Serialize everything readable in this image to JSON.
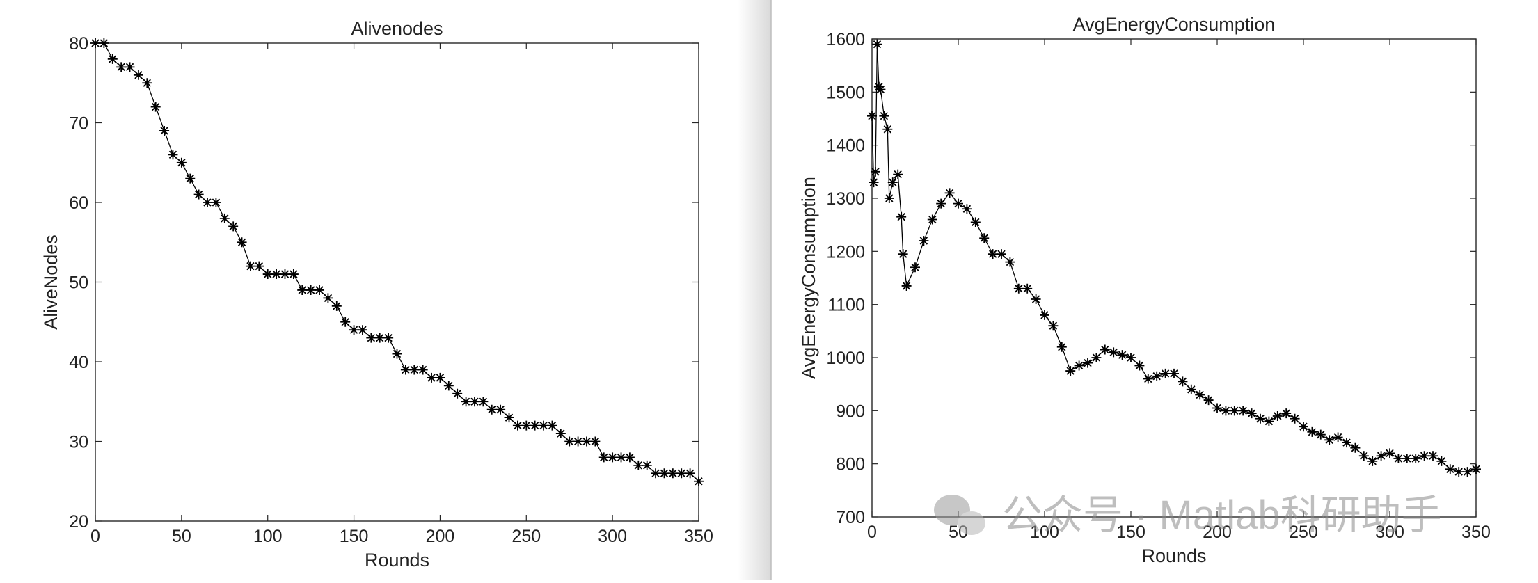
{
  "chart_data": [
    {
      "type": "line",
      "title": "Alivenodes",
      "xlabel": "Rounds",
      "ylabel": "AliveNodes",
      "color": "#000000",
      "marker": "star",
      "x": [
        0,
        5,
        10,
        15,
        20,
        25,
        30,
        35,
        40,
        45,
        50,
        55,
        60,
        65,
        70,
        75,
        80,
        85,
        90,
        95,
        100,
        105,
        110,
        115,
        120,
        125,
        130,
        135,
        140,
        145,
        150,
        155,
        160,
        165,
        170,
        175,
        180,
        185,
        190,
        195,
        200,
        205,
        210,
        215,
        220,
        225,
        230,
        235,
        240,
        245,
        250,
        255,
        260,
        265,
        270,
        275,
        280,
        285,
        290,
        295,
        300,
        305,
        310,
        315,
        320,
        325,
        330,
        335,
        340,
        345,
        350
      ],
      "values": [
        80,
        80,
        78,
        77,
        77,
        76,
        75,
        72,
        69,
        66,
        65,
        63,
        61,
        60,
        60,
        58,
        57,
        55,
        52,
        52,
        51,
        51,
        51,
        51,
        49,
        49,
        49,
        48,
        47,
        45,
        44,
        44,
        43,
        43,
        43,
        41,
        39,
        39,
        39,
        38,
        38,
        37,
        36,
        35,
        35,
        35,
        34,
        34,
        33,
        32,
        32,
        32,
        32,
        32,
        31,
        30,
        30,
        30,
        30,
        28,
        28,
        28,
        28,
        27,
        27,
        26,
        26,
        26,
        26,
        26,
        25
      ],
      "xlim": [
        0,
        350
      ],
      "ylim": [
        20,
        80
      ],
      "xticks": [
        0,
        50,
        100,
        150,
        200,
        250,
        300,
        350
      ],
      "yticks": [
        20,
        30,
        40,
        50,
        60,
        70,
        80
      ]
    },
    {
      "type": "line",
      "title": "AvgEnergyConsumption",
      "xlabel": "Rounds",
      "ylabel": "AvgEnergyConsumption",
      "color": "#000000",
      "marker": "star",
      "x": [
        0,
        1,
        2,
        3,
        4,
        5,
        7,
        9,
        10,
        12,
        15,
        17,
        18,
        20,
        25,
        30,
        35,
        40,
        45,
        50,
        55,
        60,
        65,
        70,
        75,
        80,
        85,
        90,
        95,
        100,
        105,
        110,
        115,
        120,
        125,
        130,
        135,
        140,
        145,
        150,
        155,
        160,
        165,
        170,
        175,
        180,
        185,
        190,
        195,
        200,
        205,
        210,
        215,
        220,
        225,
        230,
        235,
        240,
        245,
        250,
        255,
        260,
        265,
        270,
        275,
        280,
        285,
        290,
        295,
        300,
        305,
        310,
        315,
        320,
        325,
        330,
        335,
        340,
        345,
        350
      ],
      "values": [
        1455,
        1330,
        1350,
        1590,
        1510,
        1505,
        1455,
        1430,
        1300,
        1330,
        1345,
        1265,
        1195,
        1135,
        1170,
        1220,
        1260,
        1290,
        1310,
        1290,
        1280,
        1255,
        1225,
        1195,
        1195,
        1180,
        1130,
        1130,
        1110,
        1080,
        1060,
        1020,
        975,
        985,
        990,
        1000,
        1015,
        1010,
        1005,
        1000,
        985,
        960,
        965,
        970,
        970,
        955,
        940,
        930,
        920,
        905,
        900,
        900,
        900,
        895,
        885,
        880,
        890,
        895,
        885,
        870,
        860,
        855,
        845,
        850,
        840,
        830,
        815,
        805,
        815,
        820,
        810,
        810,
        810,
        815,
        815,
        805,
        790,
        785,
        785,
        790
      ],
      "xlim": [
        0,
        350
      ],
      "ylim": [
        700,
        1600
      ],
      "xticks": [
        0,
        50,
        100,
        150,
        200,
        250,
        300,
        350
      ],
      "yticks": [
        700,
        800,
        900,
        1000,
        1100,
        1200,
        1300,
        1400,
        1500,
        1600
      ]
    }
  ],
  "watermark": "公众号 · Matlab科研助手"
}
